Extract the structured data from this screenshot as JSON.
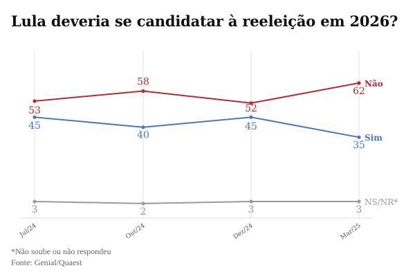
{
  "title": "Lula deveria se candidatar à reeleição em 2026?",
  "footnotes": {
    "note": "*Não soube ou não respondeu",
    "source": "Fonte: Genial/Quaest"
  },
  "chart_data": {
    "type": "line",
    "title": "Lula deveria se candidatar à reeleição em 2026?",
    "categories": [
      "Jul/24",
      "Out/24",
      "Dez/24",
      "Mar/25"
    ],
    "ylim": [
      0,
      70
    ],
    "grid": "vertical",
    "series": [
      {
        "name": "Não",
        "color": "#c0272d",
        "values": [
          53,
          58,
          52,
          62
        ]
      },
      {
        "name": "Sim",
        "color": "#4a78c2",
        "values": [
          45,
          40,
          45,
          35
        ]
      },
      {
        "name": "NS/NR*",
        "color": "#9a9a9a",
        "values": [
          3,
          2,
          3,
          3
        ]
      }
    ]
  }
}
